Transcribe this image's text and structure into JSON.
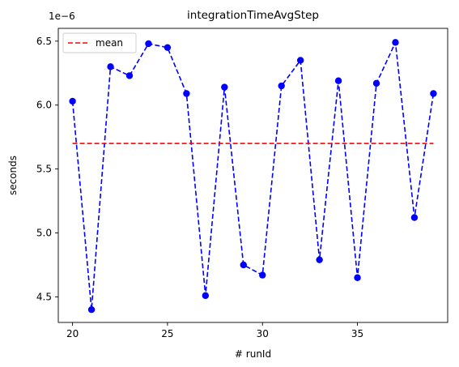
{
  "chart_data": {
    "type": "line",
    "title": "integrationTimeAvgStep",
    "xlabel": "# runId",
    "ylabel": "seconds",
    "offset_label": "1e−6",
    "xlim": [
      19.25,
      39.75
    ],
    "ylim": [
      4.3,
      6.6
    ],
    "xticks": [
      20,
      25,
      30,
      35
    ],
    "xtick_labels": [
      "20",
      "25",
      "30",
      "35"
    ],
    "yticks": [
      4.5,
      5.0,
      5.5,
      6.0,
      6.5
    ],
    "ytick_labels": [
      "4.5",
      "5.0",
      "5.5",
      "6.0",
      "6.5"
    ],
    "grid": false,
    "legend_position": "top-left",
    "series": [
      {
        "style": "dashed-line-with-circle-markers",
        "color": "#0000ff",
        "x": [
          20,
          21,
          22,
          23,
          24,
          25,
          26,
          27,
          28,
          29,
          30,
          31,
          32,
          33,
          34,
          35,
          36,
          37,
          38,
          39
        ],
        "y": [
          6.03,
          4.4,
          6.3,
          6.23,
          6.48,
          6.45,
          6.09,
          4.51,
          6.14,
          4.75,
          4.67,
          6.15,
          6.35,
          4.79,
          6.19,
          4.65,
          6.17,
          6.49,
          5.12,
          6.09
        ]
      },
      {
        "name": "mean",
        "style": "dashed-line",
        "color": "#ff0000",
        "x": [
          20,
          39
        ],
        "y": [
          5.7,
          5.7
        ]
      }
    ]
  }
}
